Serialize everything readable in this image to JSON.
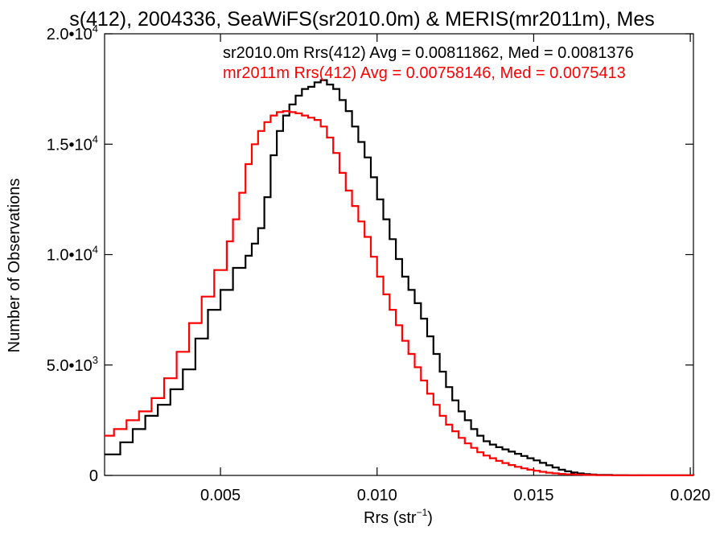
{
  "chart_data": {
    "type": "line",
    "title": "s(412), 2004336, SeaWiFS(sr2010.0m) & MERIS(mr2011m), Mes",
    "xlabel": "Rrs (str",
    "xlabel_sup": "−1",
    "xlabel_close": ")",
    "ylabel": "Number of Observations",
    "xlim": [
      0.0013,
      0.0201
    ],
    "ylim": [
      0,
      20000
    ],
    "x_ticks": [
      {
        "value": 0.005,
        "label": "0.005"
      },
      {
        "value": 0.01,
        "label": "0.010"
      },
      {
        "value": 0.015,
        "label": "0.015"
      },
      {
        "value": 0.02,
        "label": "0.020"
      }
    ],
    "y_ticks": [
      {
        "value": 0,
        "label": "0",
        "exp": ""
      },
      {
        "value": 5000,
        "label": "5.0•10",
        "exp": "3"
      },
      {
        "value": 10000,
        "label": "1.0•10",
        "exp": "4"
      },
      {
        "value": 15000,
        "label": "1.5•10",
        "exp": "4"
      },
      {
        "value": 20000,
        "label": "2.0•10",
        "exp": "4"
      }
    ],
    "grid": false,
    "legend_position": "top-right",
    "series": [
      {
        "name": "sr2010.0m Rrs(412) Avg = 0.00811862, Med = 0.0081376",
        "color": "#000000",
        "points": [
          [
            0.0013,
            950
          ],
          [
            0.0018,
            1500
          ],
          [
            0.0022,
            2100
          ],
          [
            0.0026,
            2700
          ],
          [
            0.003,
            3200
          ],
          [
            0.0034,
            3900
          ],
          [
            0.0038,
            4800
          ],
          [
            0.0042,
            6200
          ],
          [
            0.0046,
            7500
          ],
          [
            0.005,
            8400
          ],
          [
            0.0054,
            9400
          ],
          [
            0.0058,
            9950
          ],
          [
            0.006,
            10500
          ],
          [
            0.0062,
            11200
          ],
          [
            0.0064,
            12600
          ],
          [
            0.0066,
            14500
          ],
          [
            0.0068,
            15600
          ],
          [
            0.007,
            16300
          ],
          [
            0.0072,
            16800
          ],
          [
            0.0074,
            17200
          ],
          [
            0.0076,
            17500
          ],
          [
            0.0078,
            17600
          ],
          [
            0.008,
            17800
          ],
          [
            0.0082,
            17900
          ],
          [
            0.0084,
            17700
          ],
          [
            0.0086,
            17500
          ],
          [
            0.0088,
            17000
          ],
          [
            0.009,
            16500
          ],
          [
            0.0092,
            15800
          ],
          [
            0.0094,
            15100
          ],
          [
            0.0096,
            14400
          ],
          [
            0.0098,
            13500
          ],
          [
            0.01,
            12500
          ],
          [
            0.0102,
            11600
          ],
          [
            0.0104,
            10700
          ],
          [
            0.0106,
            9800
          ],
          [
            0.0108,
            9000
          ],
          [
            0.011,
            8400
          ],
          [
            0.0112,
            7800
          ],
          [
            0.0114,
            7100
          ],
          [
            0.0116,
            6300
          ],
          [
            0.0118,
            5500
          ],
          [
            0.012,
            4700
          ],
          [
            0.0122,
            4000
          ],
          [
            0.0124,
            3400
          ],
          [
            0.0126,
            2900
          ],
          [
            0.0128,
            2500
          ],
          [
            0.013,
            2100
          ],
          [
            0.0132,
            1800
          ],
          [
            0.0134,
            1550
          ],
          [
            0.0136,
            1400
          ],
          [
            0.0138,
            1280
          ],
          [
            0.014,
            1180
          ],
          [
            0.0142,
            1080
          ],
          [
            0.0144,
            980
          ],
          [
            0.0146,
            880
          ],
          [
            0.0148,
            780
          ],
          [
            0.015,
            680
          ],
          [
            0.0152,
            570
          ],
          [
            0.0154,
            460
          ],
          [
            0.0156,
            360
          ],
          [
            0.0158,
            260
          ],
          [
            0.016,
            190
          ],
          [
            0.0162,
            130
          ],
          [
            0.0164,
            90
          ],
          [
            0.0166,
            60
          ],
          [
            0.0168,
            40
          ],
          [
            0.017,
            25
          ],
          [
            0.0175,
            12
          ],
          [
            0.018,
            6
          ],
          [
            0.019,
            3
          ],
          [
            0.0201,
            1
          ]
        ]
      },
      {
        "name": "mr2011m Rrs(412) Avg = 0.00758146, Med = 0.0075413",
        "color": "#ff0000",
        "points": [
          [
            0.0013,
            1800
          ],
          [
            0.0016,
            2100
          ],
          [
            0.002,
            2500
          ],
          [
            0.0024,
            2900
          ],
          [
            0.0028,
            3500
          ],
          [
            0.0032,
            4400
          ],
          [
            0.0036,
            5600
          ],
          [
            0.004,
            6900
          ],
          [
            0.0044,
            8100
          ],
          [
            0.0048,
            9300
          ],
          [
            0.0052,
            10600
          ],
          [
            0.0054,
            11600
          ],
          [
            0.0056,
            12800
          ],
          [
            0.0058,
            14100
          ],
          [
            0.006,
            15000
          ],
          [
            0.0062,
            15600
          ],
          [
            0.0064,
            16000
          ],
          [
            0.0066,
            16300
          ],
          [
            0.0068,
            16450
          ],
          [
            0.007,
            16500
          ],
          [
            0.0072,
            16450
          ],
          [
            0.0074,
            16400
          ],
          [
            0.0076,
            16300
          ],
          [
            0.0078,
            16200
          ],
          [
            0.008,
            16100
          ],
          [
            0.0082,
            15800
          ],
          [
            0.0084,
            15300
          ],
          [
            0.0086,
            14600
          ],
          [
            0.0088,
            13700
          ],
          [
            0.009,
            12900
          ],
          [
            0.0092,
            12200
          ],
          [
            0.0094,
            11500
          ],
          [
            0.0096,
            10800
          ],
          [
            0.0098,
            9900
          ],
          [
            0.01,
            9000
          ],
          [
            0.0102,
            8200
          ],
          [
            0.0104,
            7500
          ],
          [
            0.0106,
            6800
          ],
          [
            0.0108,
            6100
          ],
          [
            0.011,
            5500
          ],
          [
            0.0112,
            4900
          ],
          [
            0.0114,
            4300
          ],
          [
            0.0116,
            3700
          ],
          [
            0.0118,
            3200
          ],
          [
            0.012,
            2700
          ],
          [
            0.0122,
            2300
          ],
          [
            0.0124,
            2000
          ],
          [
            0.0126,
            1700
          ],
          [
            0.0128,
            1450
          ],
          [
            0.013,
            1250
          ],
          [
            0.0132,
            1050
          ],
          [
            0.0134,
            900
          ],
          [
            0.0136,
            780
          ],
          [
            0.0138,
            660
          ],
          [
            0.014,
            560
          ],
          [
            0.0142,
            470
          ],
          [
            0.0144,
            390
          ],
          [
            0.0146,
            320
          ],
          [
            0.0148,
            260
          ],
          [
            0.015,
            210
          ],
          [
            0.0152,
            165
          ],
          [
            0.0154,
            125
          ],
          [
            0.0156,
            95
          ],
          [
            0.0158,
            70
          ],
          [
            0.016,
            52
          ],
          [
            0.0163,
            35
          ],
          [
            0.0166,
            22
          ],
          [
            0.017,
            12
          ],
          [
            0.0175,
            6
          ],
          [
            0.0185,
            3
          ],
          [
            0.0201,
            1
          ]
        ]
      }
    ]
  }
}
